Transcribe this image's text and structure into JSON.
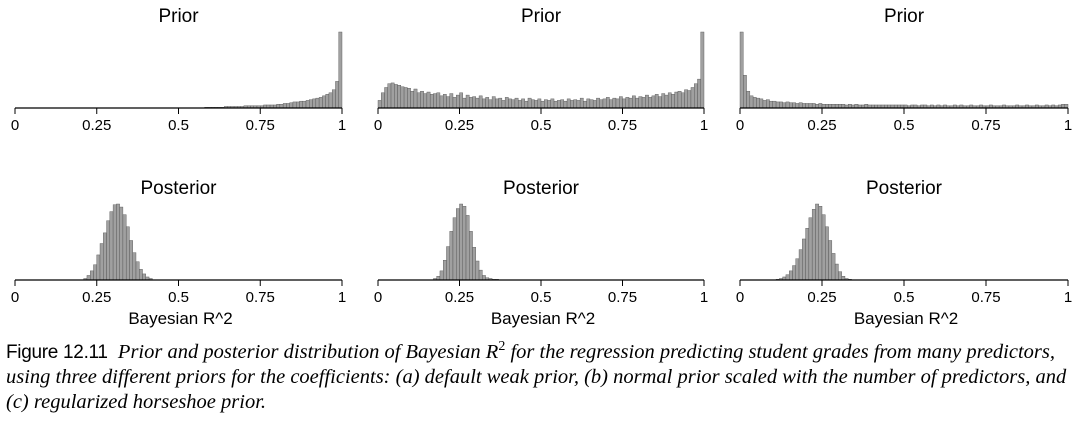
{
  "caption": {
    "label": "Figure 12.11",
    "text_before": "Prior and posterior distribution of Bayesian ",
    "r_symbol": "R",
    "superscript": "2",
    "text_after": " for the regression predicting student grades from many predictors, using three different priors for the coefficients: (a) default weak prior, (b) normal prior scaled with the number of predictors, and (c) regularized horseshoe prior."
  },
  "colors": {
    "bar_fill": "#a0a0a0",
    "bar_stroke": "#505050",
    "axis": "#000000"
  },
  "chart_data": [
    {
      "type": "bar",
      "title": "Prior",
      "xlabel": "",
      "ylabel": "",
      "xlim": [
        0,
        1
      ],
      "ylim": [
        0,
        1
      ],
      "xticks": [
        "0",
        "0.25",
        "0.5",
        "0.75",
        "1"
      ],
      "bin_width": 0.01,
      "bins": [
        0.58,
        0.59,
        0.6,
        0.61,
        0.62,
        0.63,
        0.64,
        0.65,
        0.66,
        0.67,
        0.68,
        0.69,
        0.7,
        0.71,
        0.72,
        0.73,
        0.74,
        0.75,
        0.76,
        0.77,
        0.78,
        0.79,
        0.8,
        0.81,
        0.82,
        0.83,
        0.84,
        0.85,
        0.86,
        0.87,
        0.88,
        0.89,
        0.9,
        0.91,
        0.92,
        0.93,
        0.94,
        0.95,
        0.96,
        0.97,
        0.98,
        0.99
      ],
      "values": [
        0.01,
        0.01,
        0.01,
        0.01,
        0.01,
        0.01,
        0.02,
        0.02,
        0.02,
        0.02,
        0.02,
        0.02,
        0.03,
        0.03,
        0.03,
        0.03,
        0.03,
        0.03,
        0.04,
        0.04,
        0.04,
        0.04,
        0.05,
        0.05,
        0.06,
        0.06,
        0.07,
        0.08,
        0.08,
        0.09,
        0.09,
        0.1,
        0.11,
        0.12,
        0.13,
        0.14,
        0.16,
        0.18,
        0.2,
        0.24,
        0.35,
        1.0
      ]
    },
    {
      "type": "bar",
      "title": "Prior",
      "xlabel": "",
      "ylabel": "",
      "xlim": [
        0,
        1
      ],
      "ylim": [
        0,
        1
      ],
      "xticks": [
        "0",
        "0.25",
        "0.5",
        "0.75",
        "1"
      ],
      "bin_width": 0.01,
      "bins": [
        0.0,
        0.01,
        0.02,
        0.03,
        0.04,
        0.05,
        0.06,
        0.07,
        0.08,
        0.09,
        0.1,
        0.11,
        0.12,
        0.13,
        0.14,
        0.15,
        0.16,
        0.17,
        0.18,
        0.19,
        0.2,
        0.21,
        0.22,
        0.23,
        0.24,
        0.25,
        0.26,
        0.27,
        0.28,
        0.29,
        0.3,
        0.31,
        0.32,
        0.33,
        0.34,
        0.35,
        0.36,
        0.37,
        0.38,
        0.39,
        0.4,
        0.41,
        0.42,
        0.43,
        0.44,
        0.45,
        0.46,
        0.47,
        0.48,
        0.49,
        0.5,
        0.51,
        0.52,
        0.53,
        0.54,
        0.55,
        0.56,
        0.57,
        0.58,
        0.59,
        0.6,
        0.61,
        0.62,
        0.63,
        0.64,
        0.65,
        0.66,
        0.67,
        0.68,
        0.69,
        0.7,
        0.71,
        0.72,
        0.73,
        0.74,
        0.75,
        0.76,
        0.77,
        0.78,
        0.79,
        0.8,
        0.81,
        0.82,
        0.83,
        0.84,
        0.85,
        0.86,
        0.87,
        0.88,
        0.89,
        0.9,
        0.91,
        0.92,
        0.93,
        0.94,
        0.95,
        0.96,
        0.97,
        0.98,
        0.99
      ],
      "values": [
        0.1,
        0.2,
        0.27,
        0.32,
        0.33,
        0.31,
        0.3,
        0.28,
        0.27,
        0.26,
        0.22,
        0.25,
        0.2,
        0.22,
        0.19,
        0.21,
        0.18,
        0.19,
        0.2,
        0.16,
        0.18,
        0.15,
        0.19,
        0.14,
        0.17,
        0.2,
        0.13,
        0.17,
        0.14,
        0.15,
        0.13,
        0.16,
        0.12,
        0.14,
        0.11,
        0.15,
        0.12,
        0.13,
        0.1,
        0.14,
        0.12,
        0.11,
        0.13,
        0.1,
        0.12,
        0.09,
        0.13,
        0.11,
        0.1,
        0.12,
        0.09,
        0.11,
        0.1,
        0.12,
        0.09,
        0.1,
        0.11,
        0.09,
        0.12,
        0.1,
        0.11,
        0.1,
        0.13,
        0.09,
        0.12,
        0.11,
        0.1,
        0.13,
        0.11,
        0.12,
        0.14,
        0.11,
        0.13,
        0.12,
        0.15,
        0.12,
        0.14,
        0.13,
        0.16,
        0.13,
        0.15,
        0.14,
        0.17,
        0.14,
        0.16,
        0.18,
        0.15,
        0.19,
        0.17,
        0.2,
        0.18,
        0.21,
        0.22,
        0.2,
        0.24,
        0.23,
        0.27,
        0.32,
        0.38,
        1.0
      ]
    },
    {
      "type": "bar",
      "title": "Prior",
      "xlabel": "",
      "ylabel": "",
      "xlim": [
        0,
        1
      ],
      "ylim": [
        0,
        1
      ],
      "xticks": [
        "0",
        "0.25",
        "0.5",
        "0.75",
        "1"
      ],
      "bin_width": 0.01,
      "bins": [
        0.0,
        0.01,
        0.02,
        0.03,
        0.04,
        0.05,
        0.06,
        0.07,
        0.08,
        0.09,
        0.1,
        0.11,
        0.12,
        0.13,
        0.14,
        0.15,
        0.16,
        0.17,
        0.18,
        0.19,
        0.2,
        0.21,
        0.22,
        0.23,
        0.24,
        0.25,
        0.26,
        0.27,
        0.28,
        0.29,
        0.3,
        0.31,
        0.32,
        0.33,
        0.34,
        0.35,
        0.36,
        0.37,
        0.38,
        0.39,
        0.4,
        0.41,
        0.42,
        0.43,
        0.44,
        0.45,
        0.46,
        0.47,
        0.48,
        0.49,
        0.5,
        0.51,
        0.52,
        0.53,
        0.54,
        0.55,
        0.56,
        0.57,
        0.58,
        0.59,
        0.6,
        0.61,
        0.62,
        0.63,
        0.64,
        0.65,
        0.66,
        0.67,
        0.68,
        0.69,
        0.7,
        0.71,
        0.72,
        0.73,
        0.74,
        0.75,
        0.76,
        0.77,
        0.78,
        0.79,
        0.8,
        0.81,
        0.82,
        0.83,
        0.84,
        0.85,
        0.86,
        0.87,
        0.88,
        0.89,
        0.9,
        0.91,
        0.92,
        0.93,
        0.94,
        0.95,
        0.96,
        0.97,
        0.98,
        0.99
      ],
      "values": [
        1.0,
        0.43,
        0.22,
        0.16,
        0.14,
        0.13,
        0.12,
        0.1,
        0.11,
        0.09,
        0.09,
        0.08,
        0.08,
        0.07,
        0.08,
        0.07,
        0.07,
        0.06,
        0.07,
        0.06,
        0.06,
        0.06,
        0.06,
        0.05,
        0.06,
        0.05,
        0.05,
        0.05,
        0.05,
        0.05,
        0.05,
        0.05,
        0.04,
        0.05,
        0.04,
        0.05,
        0.04,
        0.04,
        0.05,
        0.04,
        0.04,
        0.04,
        0.04,
        0.04,
        0.04,
        0.04,
        0.04,
        0.04,
        0.04,
        0.04,
        0.04,
        0.03,
        0.04,
        0.04,
        0.03,
        0.04,
        0.04,
        0.03,
        0.04,
        0.03,
        0.04,
        0.03,
        0.04,
        0.03,
        0.03,
        0.04,
        0.03,
        0.04,
        0.03,
        0.03,
        0.04,
        0.03,
        0.03,
        0.04,
        0.03,
        0.03,
        0.04,
        0.03,
        0.03,
        0.03,
        0.04,
        0.03,
        0.03,
        0.03,
        0.04,
        0.03,
        0.03,
        0.04,
        0.03,
        0.03,
        0.04,
        0.03,
        0.03,
        0.04,
        0.03,
        0.04,
        0.03,
        0.04,
        0.05,
        0.05
      ]
    },
    {
      "type": "bar",
      "title": "Posterior",
      "xlabel": "Bayesian R^2",
      "ylabel": "",
      "xlim": [
        0,
        1
      ],
      "ylim": [
        0,
        1
      ],
      "xticks": [
        "0",
        "0.25",
        "0.5",
        "0.75",
        "1"
      ],
      "bin_width": 0.01,
      "bins": [
        0.21,
        0.22,
        0.23,
        0.24,
        0.25,
        0.26,
        0.27,
        0.28,
        0.29,
        0.3,
        0.31,
        0.32,
        0.33,
        0.34,
        0.35,
        0.36,
        0.37,
        0.38,
        0.39,
        0.4,
        0.41
      ],
      "values": [
        0.02,
        0.06,
        0.12,
        0.2,
        0.33,
        0.48,
        0.62,
        0.78,
        0.9,
        0.99,
        1.0,
        0.96,
        0.86,
        0.7,
        0.52,
        0.36,
        0.24,
        0.14,
        0.08,
        0.04,
        0.02
      ]
    },
    {
      "type": "bar",
      "title": "Posterior",
      "xlabel": "Bayesian R^2",
      "ylabel": "",
      "xlim": [
        0,
        1
      ],
      "ylim": [
        0,
        1
      ],
      "xticks": [
        "0",
        "0.25",
        "0.5",
        "0.75",
        "1"
      ],
      "bin_width": 0.01,
      "bins": [
        0.17,
        0.18,
        0.19,
        0.2,
        0.21,
        0.22,
        0.23,
        0.24,
        0.25,
        0.26,
        0.27,
        0.28,
        0.29,
        0.3,
        0.31,
        0.32,
        0.33,
        0.34,
        0.35,
        0.36
      ],
      "values": [
        0.02,
        0.05,
        0.12,
        0.26,
        0.44,
        0.64,
        0.82,
        0.94,
        1.0,
        0.97,
        0.85,
        0.64,
        0.43,
        0.25,
        0.13,
        0.06,
        0.03,
        0.02,
        0.01,
        0.01
      ]
    },
    {
      "type": "bar",
      "title": "Posterior",
      "xlabel": "Bayesian R^2",
      "ylabel": "",
      "xlim": [
        0,
        1
      ],
      "ylim": [
        0,
        1
      ],
      "xticks": [
        "0",
        "0.25",
        "0.5",
        "0.75",
        "1"
      ],
      "bin_width": 0.01,
      "bins": [
        0.11,
        0.12,
        0.13,
        0.14,
        0.15,
        0.16,
        0.17,
        0.18,
        0.19,
        0.2,
        0.21,
        0.22,
        0.23,
        0.24,
        0.25,
        0.26,
        0.27,
        0.28,
        0.29,
        0.3,
        0.31,
        0.32,
        0.33
      ],
      "values": [
        0.01,
        0.02,
        0.04,
        0.07,
        0.12,
        0.19,
        0.28,
        0.4,
        0.54,
        0.68,
        0.82,
        0.93,
        1.0,
        0.97,
        0.86,
        0.7,
        0.52,
        0.35,
        0.21,
        0.11,
        0.05,
        0.02,
        0.01
      ]
    }
  ]
}
